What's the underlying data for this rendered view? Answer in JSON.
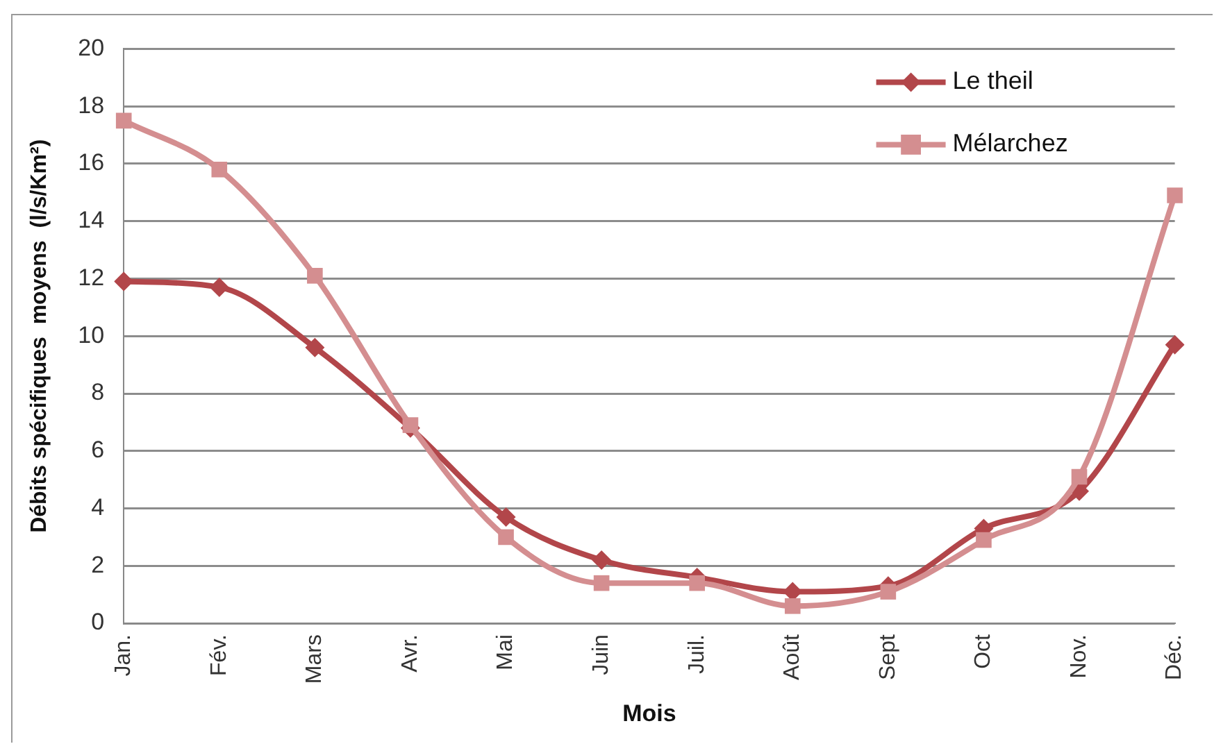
{
  "chart_data": {
    "type": "line",
    "xlabel": "Mois",
    "ylabel": "Débits spécifiques  moyens  (l/s/Km²)",
    "categories": [
      "Jan.",
      "Fév.",
      "Mars",
      "Avr.",
      "Mai",
      "Juin",
      "Juil.",
      "Août",
      "Sept",
      "Oct",
      "Nov.",
      "Déc."
    ],
    "series": [
      {
        "name": "Le theil",
        "color": "#b2464a",
        "marker": "diamond",
        "values": [
          11.9,
          11.7,
          9.6,
          6.8,
          3.7,
          2.2,
          1.6,
          1.1,
          1.3,
          3.3,
          4.6,
          9.7
        ]
      },
      {
        "name": "Mélarchez",
        "color": "#d48e90",
        "marker": "square",
        "values": [
          17.5,
          15.8,
          12.1,
          6.9,
          3.0,
          1.4,
          1.4,
          0.6,
          1.1,
          2.9,
          5.1,
          14.9
        ]
      }
    ],
    "ylim": [
      0,
      20
    ],
    "yticks": [
      0,
      2,
      4,
      6,
      8,
      10,
      12,
      14,
      16,
      18,
      20
    ],
    "grid": "y",
    "legend": "top right"
  }
}
